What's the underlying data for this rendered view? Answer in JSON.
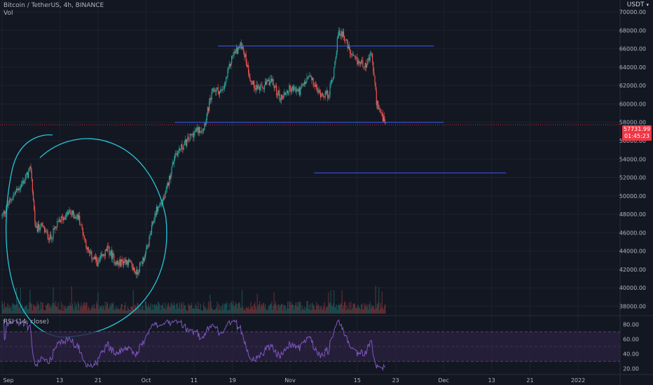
{
  "header": {
    "symbol_line": "Bitcoin / TetherUS, 4h, BINANCE",
    "volume_label": "Vol",
    "currency": "USDT",
    "currency_chevron": "▾"
  },
  "rsi": {
    "label": "RSI (14, close)"
  },
  "last_price": {
    "value": "57731.99",
    "countdown": "01:45:23"
  },
  "colors": {
    "background": "#131722",
    "grid": "#1e222d",
    "up": "#26a69a",
    "down": "#ef5350",
    "rsi_line": "#7e57c2",
    "rsi_band": "#2a2040",
    "level_line": "#3d5afe",
    "annotation": "#26c6da",
    "price_tag": "#f23645"
  },
  "chart_data": {
    "type": "candlestick",
    "price_axis_ticks": [
      "70000.00",
      "68000.00",
      "66000.00",
      "64000.00",
      "62000.00",
      "60000.00",
      "58000.00",
      "56000.00",
      "54000.00",
      "52000.00",
      "50000.00",
      "48000.00",
      "46000.00",
      "44000.00",
      "42000.00",
      "40000.00",
      "38000.00"
    ],
    "price_range": [
      37200,
      71300
    ],
    "rsi_axis_ticks": [
      "80.00",
      "60.00",
      "40.00",
      "20.00"
    ],
    "rsi_range": [
      15,
      87
    ],
    "rsi_bands": [
      70,
      50,
      30
    ],
    "time_axis_ticks": [
      "Sep",
      "13",
      "21",
      "Oct",
      "11",
      "19",
      "Nov",
      "15",
      "23",
      "Dec",
      "13",
      "21",
      "2022"
    ],
    "price_path": [
      {
        "d": 0,
        "p": 47800
      },
      {
        "d": 2,
        "p": 49800
      },
      {
        "d": 4,
        "p": 51200
      },
      {
        "d": 6,
        "p": 52900
      },
      {
        "d": 7,
        "p": 46200
      },
      {
        "d": 8,
        "p": 46800
      },
      {
        "d": 10,
        "p": 45400
      },
      {
        "d": 12,
        "p": 47300
      },
      {
        "d": 14,
        "p": 48200
      },
      {
        "d": 16,
        "p": 47600
      },
      {
        "d": 18,
        "p": 43800
      },
      {
        "d": 20,
        "p": 42700
      },
      {
        "d": 22,
        "p": 44200
      },
      {
        "d": 24,
        "p": 42600
      },
      {
        "d": 26,
        "p": 43000
      },
      {
        "d": 28,
        "p": 41600
      },
      {
        "d": 30,
        "p": 43800
      },
      {
        "d": 32,
        "p": 48300
      },
      {
        "d": 34,
        "p": 50000
      },
      {
        "d": 36,
        "p": 54500
      },
      {
        "d": 38,
        "p": 55600
      },
      {
        "d": 40,
        "p": 56900
      },
      {
        "d": 42,
        "p": 57500
      },
      {
        "d": 44,
        "p": 61600
      },
      {
        "d": 46,
        "p": 61300
      },
      {
        "d": 48,
        "p": 65300
      },
      {
        "d": 50,
        "p": 66500
      },
      {
        "d": 52,
        "p": 62200
      },
      {
        "d": 54,
        "p": 61600
      },
      {
        "d": 56,
        "p": 62600
      },
      {
        "d": 58,
        "p": 60600
      },
      {
        "d": 60,
        "p": 61700
      },
      {
        "d": 62,
        "p": 61400
      },
      {
        "d": 64,
        "p": 63000
      },
      {
        "d": 66,
        "p": 61200
      },
      {
        "d": 68,
        "p": 61000
      },
      {
        "d": 69,
        "p": 63200
      },
      {
        "d": 70,
        "p": 67500
      },
      {
        "d": 71,
        "p": 67800
      },
      {
        "d": 72,
        "p": 66200
      },
      {
        "d": 73,
        "p": 65000
      },
      {
        "d": 74,
        "p": 64600
      },
      {
        "d": 76,
        "p": 64300
      },
      {
        "d": 77,
        "p": 65400
      },
      {
        "d": 78,
        "p": 60300
      },
      {
        "d": 79,
        "p": 58800
      },
      {
        "d": 79.9,
        "p": 57732
      }
    ],
    "annotations": {
      "levels": [
        {
          "price": 66300,
          "from_day": 45,
          "to_day": 90
        },
        {
          "price": 58000,
          "from_day": 36,
          "to_day": 92
        },
        {
          "price": 52500,
          "from_day": 65,
          "to_day": 105
        }
      ],
      "current_price_line": 57732,
      "circled_region_days": [
        0,
        35
      ]
    }
  }
}
